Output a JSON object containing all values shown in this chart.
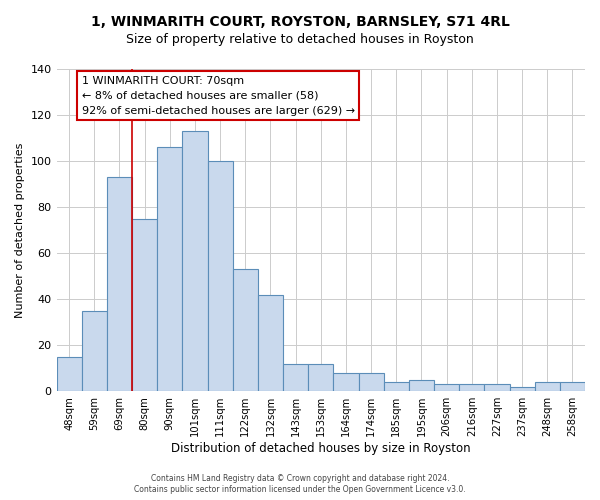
{
  "title": "1, WINMARITH COURT, ROYSTON, BARNSLEY, S71 4RL",
  "subtitle": "Size of property relative to detached houses in Royston",
  "xlabel": "Distribution of detached houses by size in Royston",
  "ylabel": "Number of detached properties",
  "bar_labels": [
    "48sqm",
    "59sqm",
    "69sqm",
    "80sqm",
    "90sqm",
    "101sqm",
    "111sqm",
    "122sqm",
    "132sqm",
    "143sqm",
    "153sqm",
    "164sqm",
    "174sqm",
    "185sqm",
    "195sqm",
    "206sqm",
    "216sqm",
    "227sqm",
    "237sqm",
    "248sqm",
    "258sqm"
  ],
  "bar_values": [
    15,
    35,
    93,
    75,
    106,
    113,
    100,
    53,
    42,
    12,
    12,
    8,
    8,
    4,
    5,
    3,
    3,
    3,
    2,
    4,
    4
  ],
  "bar_color": "#c9d9ed",
  "bar_edge_color": "#5b8db8",
  "ylim": [
    0,
    140
  ],
  "yticks": [
    0,
    20,
    40,
    60,
    80,
    100,
    120,
    140
  ],
  "annotation_line1": "1 WINMARITH COURT: 70sqm",
  "annotation_line2": "← 8% of detached houses are smaller (58)",
  "annotation_line3": "92% of semi-detached houses are larger (629) →",
  "annotation_box_edge": "#cc0000",
  "redline_x": 2.5,
  "footer_line1": "Contains HM Land Registry data © Crown copyright and database right 2024.",
  "footer_line2": "Contains public sector information licensed under the Open Government Licence v3.0.",
  "background_color": "#ffffff",
  "grid_color": "#cccccc"
}
